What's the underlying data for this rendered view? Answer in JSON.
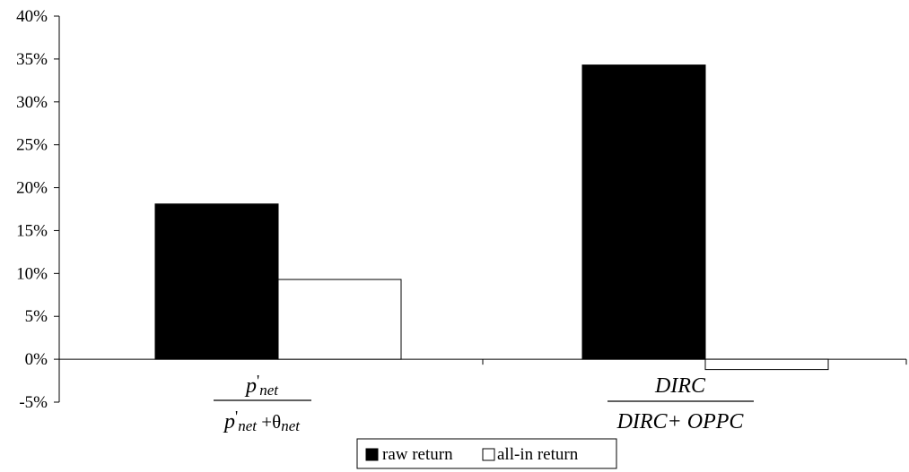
{
  "chart_data": {
    "type": "bar",
    "categories": [
      {
        "numerator": "p'net",
        "denominator": "p'net +θnet"
      },
      {
        "numerator": "DIRC",
        "denominator": "DIRC+ OPPC"
      }
    ],
    "series": [
      {
        "name": "raw return",
        "values": [
          18.1,
          34.3
        ],
        "color": "#000000"
      },
      {
        "name": "all-in return",
        "values": [
          9.3,
          -1.2
        ],
        "color": "#ffffff"
      }
    ],
    "ylim": [
      -5,
      40
    ],
    "yticks": [
      "40%",
      "35%",
      "30%",
      "25%",
      "20%",
      "15%",
      "10%",
      "5%",
      "0%",
      "-5%"
    ],
    "ytick_values": [
      40,
      35,
      30,
      25,
      20,
      15,
      10,
      5,
      0,
      -5
    ],
    "grid": false,
    "legend_placement": "bottom-center"
  }
}
